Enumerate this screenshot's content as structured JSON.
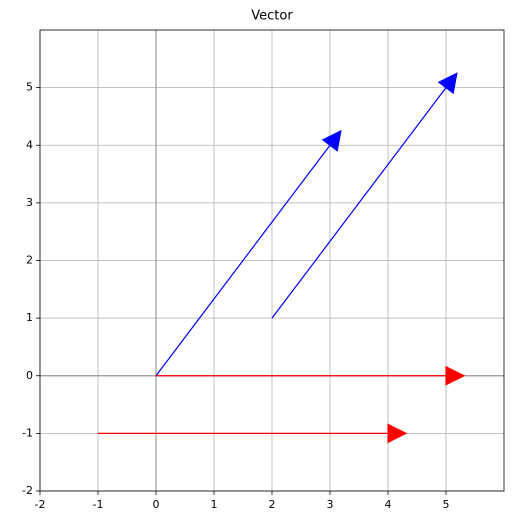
{
  "chart_data": {
    "type": "vector",
    "title": "Vector",
    "vectors": [
      {
        "x": 0,
        "y": 0,
        "dx": 3,
        "dy": 4,
        "color": "#0000ff"
      },
      {
        "x": 2,
        "y": 1,
        "dx": 3,
        "dy": 4,
        "color": "#0000ff"
      },
      {
        "x": 0,
        "y": 0,
        "dx": 5,
        "dy": 0,
        "color": "#ff0000"
      },
      {
        "x": -1,
        "y": -1,
        "dx": 5,
        "dy": 0,
        "color": "#ff0000"
      }
    ],
    "xlim": [
      -2,
      6
    ],
    "ylim": [
      -2,
      6
    ],
    "xticks": [
      -2,
      -1,
      0,
      1,
      2,
      3,
      4,
      5
    ],
    "yticks": [
      -2,
      -1,
      0,
      1,
      2,
      3,
      4,
      5
    ],
    "grid": true
  }
}
